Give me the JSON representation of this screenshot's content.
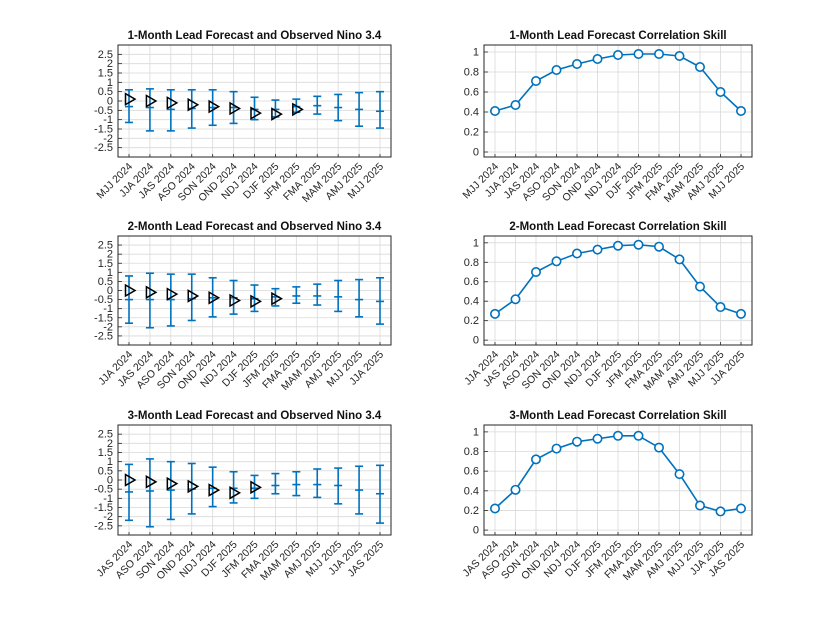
{
  "colors": {
    "forecast": "#0072BD",
    "observed": "#000000",
    "grid": "#d9d9d9",
    "axis": "#262626"
  },
  "chart_data": [
    {
      "type": "errorbar",
      "title": "1-Month Lead Forecast and Observed Nino 3.4",
      "categories": [
        "MJJ 2024",
        "JJA 2024",
        "JAS 2024",
        "ASO 2024",
        "SON 2024",
        "OND 2024",
        "NDJ 2024",
        "DJF 2025",
        "JFM 2025",
        "FMA 2025",
        "MAM 2025",
        "AMJ 2025",
        "MJJ 2025"
      ],
      "yticks": [
        "-2.5",
        "-2",
        "-1.5",
        "-1",
        "-0.5",
        "0",
        "0.5",
        "1",
        "1.5",
        "2",
        "2.5"
      ],
      "ylim": [
        -3,
        3
      ],
      "grid": true,
      "forecast_mean": [
        -0.3,
        -0.35,
        -0.45,
        -0.4,
        -0.35,
        -0.35,
        -0.45,
        -0.45,
        -0.3,
        -0.25,
        -0.35,
        -0.45,
        -0.55
      ],
      "forecast_lower": [
        -1.15,
        -1.6,
        -1.6,
        -1.45,
        -1.3,
        -1.2,
        -1.0,
        -0.85,
        -0.6,
        -0.7,
        -1.05,
        -1.35,
        -1.45
      ],
      "forecast_upper": [
        0.6,
        0.65,
        0.6,
        0.6,
        0.6,
        0.5,
        0.2,
        0.05,
        0.1,
        0.25,
        0.35,
        0.45,
        0.5
      ],
      "observed": [
        0.1,
        0.0,
        -0.1,
        -0.2,
        -0.3,
        -0.4,
        -0.65,
        -0.7,
        -0.45
      ]
    },
    {
      "type": "line",
      "title": "1-Month Lead Forecast Correlation Skill",
      "categories": [
        "MJJ 2024",
        "JJA 2024",
        "JAS 2024",
        "ASO 2024",
        "SON 2024",
        "OND 2024",
        "NDJ 2024",
        "DJF 2025",
        "JFM 2025",
        "FMA 2025",
        "MAM 2025",
        "AMJ 2025",
        "MJJ 2025"
      ],
      "yticks": [
        "0",
        "0.2",
        "0.4",
        "0.6",
        "0.8",
        "1"
      ],
      "ylim": [
        -0.05,
        1.07
      ],
      "grid": true,
      "values": [
        0.41,
        0.47,
        0.71,
        0.82,
        0.88,
        0.93,
        0.97,
        0.98,
        0.98,
        0.96,
        0.85,
        0.6,
        0.41
      ]
    },
    {
      "type": "errorbar",
      "title": "2-Month Lead Forecast and Observed Nino 3.4",
      "categories": [
        "JJA 2024",
        "JAS 2024",
        "ASO 2024",
        "SON 2024",
        "OND 2024",
        "NDJ 2024",
        "DJF 2025",
        "JFM 2025",
        "FMA 2025",
        "MAM 2025",
        "AMJ 2025",
        "MJJ 2025",
        "JJA 2025"
      ],
      "yticks": [
        "-2.5",
        "-2",
        "-1.5",
        "-1",
        "-0.5",
        "0",
        "0.5",
        "1",
        "1.5",
        "2",
        "2.5"
      ],
      "ylim": [
        -3,
        3
      ],
      "grid": true,
      "forecast_mean": [
        -0.5,
        -0.5,
        -0.5,
        -0.45,
        -0.4,
        -0.4,
        -0.45,
        -0.35,
        -0.3,
        -0.3,
        -0.35,
        -0.5,
        -0.6
      ],
      "forecast_lower": [
        -1.8,
        -2.05,
        -1.95,
        -1.65,
        -1.45,
        -1.3,
        -1.15,
        -0.85,
        -0.7,
        -0.8,
        -1.15,
        -1.45,
        -1.85
      ],
      "forecast_upper": [
        0.8,
        0.95,
        0.9,
        0.9,
        0.7,
        0.55,
        0.3,
        0.1,
        0.2,
        0.35,
        0.55,
        0.6,
        0.7
      ],
      "observed": [
        0.0,
        -0.1,
        -0.2,
        -0.3,
        -0.4,
        -0.55,
        -0.6,
        -0.45
      ]
    },
    {
      "type": "line",
      "title": "2-Month Lead Forecast Correlation Skill",
      "categories": [
        "JJA 2024",
        "JAS 2024",
        "ASO 2024",
        "SON 2024",
        "OND 2024",
        "NDJ 2024",
        "DJF 2025",
        "JFM 2025",
        "FMA 2025",
        "MAM 2025",
        "AMJ 2025",
        "MJJ 2025",
        "JJA 2025"
      ],
      "yticks": [
        "0",
        "0.2",
        "0.4",
        "0.6",
        "0.8",
        "1"
      ],
      "ylim": [
        -0.05,
        1.07
      ],
      "grid": true,
      "values": [
        0.27,
        0.42,
        0.7,
        0.81,
        0.89,
        0.93,
        0.97,
        0.98,
        0.96,
        0.83,
        0.55,
        0.34,
        0.27
      ]
    },
    {
      "type": "errorbar",
      "title": "3-Month Lead Forecast and Observed Nino 3.4",
      "categories": [
        "JAS 2024",
        "ASO 2024",
        "SON 2024",
        "OND 2024",
        "NDJ 2024",
        "DJF 2025",
        "JFM 2025",
        "FMA 2025",
        "MAM 2025",
        "AMJ 2025",
        "MJJ 2025",
        "JJA 2025",
        "JAS 2025"
      ],
      "yticks": [
        "-2.5",
        "-2",
        "-1.5",
        "-1",
        "-0.5",
        "0",
        "0.5",
        "1",
        "1.5",
        "2",
        "2.5"
      ],
      "ylim": [
        -3,
        3
      ],
      "grid": true,
      "forecast_mean": [
        -0.65,
        -0.6,
        -0.55,
        -0.5,
        -0.45,
        -0.45,
        -0.45,
        -0.3,
        -0.25,
        -0.25,
        -0.3,
        -0.55,
        -0.75
      ],
      "forecast_lower": [
        -2.2,
        -2.55,
        -2.15,
        -1.85,
        -1.45,
        -1.25,
        -1.0,
        -0.75,
        -0.85,
        -0.95,
        -1.3,
        -1.85,
        -2.35
      ],
      "forecast_upper": [
        0.85,
        1.15,
        1.0,
        0.9,
        0.7,
        0.45,
        0.25,
        0.35,
        0.45,
        0.6,
        0.65,
        0.75,
        0.8
      ],
      "observed": [
        0.0,
        -0.1,
        -0.2,
        -0.35,
        -0.55,
        -0.7,
        -0.4
      ]
    },
    {
      "type": "line",
      "title": "3-Month Lead Forecast Correlation Skill",
      "categories": [
        "JAS 2024",
        "ASO 2024",
        "SON 2024",
        "OND 2024",
        "NDJ 2024",
        "DJF 2025",
        "JFM 2025",
        "FMA 2025",
        "MAM 2025",
        "AMJ 2025",
        "MJJ 2025",
        "JJA 2025",
        "JAS 2025"
      ],
      "yticks": [
        "0",
        "0.2",
        "0.4",
        "0.6",
        "0.8",
        "1"
      ],
      "ylim": [
        -0.05,
        1.07
      ],
      "grid": true,
      "values": [
        0.22,
        0.41,
        0.72,
        0.83,
        0.9,
        0.93,
        0.96,
        0.96,
        0.84,
        0.57,
        0.25,
        0.19,
        0.22
      ]
    }
  ]
}
